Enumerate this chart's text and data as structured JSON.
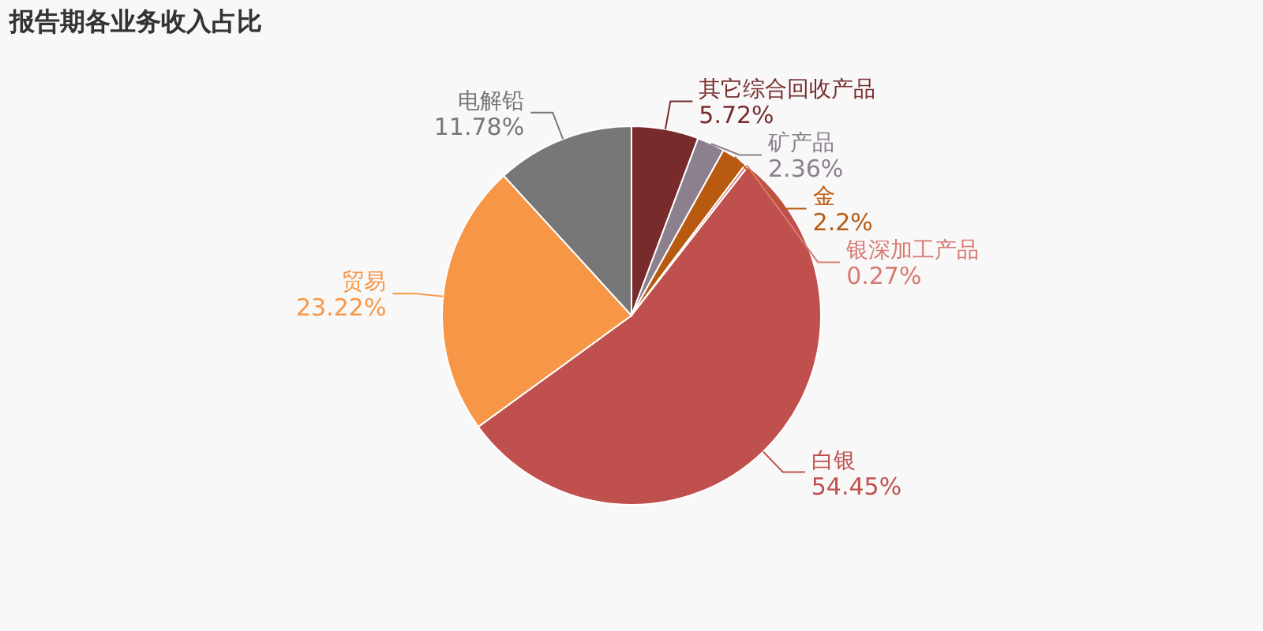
{
  "chart_data": {
    "type": "pie",
    "title": "报告期各业务收入占比",
    "categories": [
      "其它综合回收产品",
      "矿产品",
      "金",
      "银深加工产品",
      "白银",
      "贸易",
      "电解铅"
    ],
    "values": [
      5.72,
      2.36,
      2.2,
      0.27,
      54.45,
      23.22,
      11.78
    ],
    "value_labels": [
      "5.72%",
      "2.36%",
      "2.2%",
      "0.27%",
      "54.45%",
      "23.22%",
      "11.78%"
    ],
    "colors": [
      "#772b2b",
      "#8c7f8e",
      "#b85a10",
      "#d67a72",
      "#c0504d",
      "#f79646",
      "#777777"
    ]
  }
}
